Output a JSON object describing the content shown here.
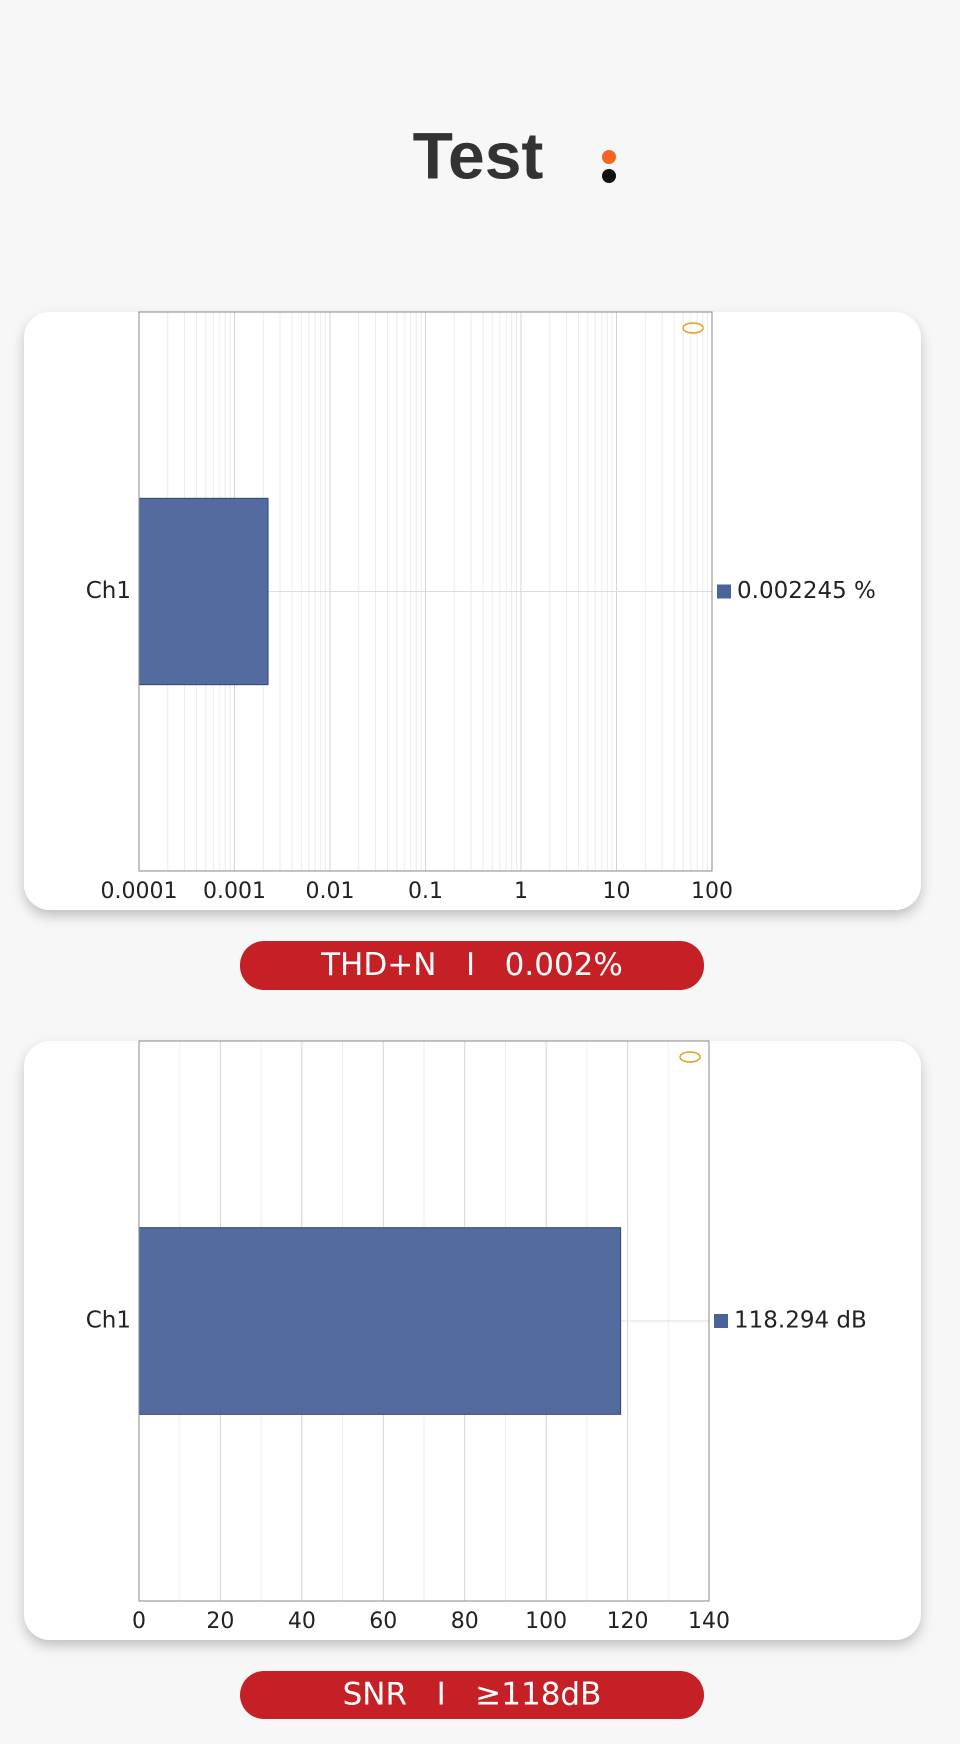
{
  "header": {
    "title": "Test"
  },
  "chart_data": [
    {
      "type": "bar",
      "orientation": "horizontal",
      "xscale": "log",
      "categories": [
        "Ch1"
      ],
      "values": [
        0.002245
      ],
      "value_labels": [
        "0.002245 %"
      ],
      "color": "#4a6399",
      "xlim": [
        0.0001,
        100
      ],
      "xticks": [
        0.0001,
        0.001,
        0.01,
        0.1,
        1,
        10,
        100
      ],
      "grid": true,
      "minor_grid": true,
      "annotation": "THD+N   I   0.002%"
    },
    {
      "type": "bar",
      "orientation": "horizontal",
      "xscale": "linear",
      "categories": [
        "Ch1"
      ],
      "values": [
        118.294
      ],
      "value_labels": [
        "118.294 dB"
      ],
      "color": "#4a6399",
      "xlim": [
        0,
        140
      ],
      "xticks": [
        0,
        20,
        40,
        60,
        80,
        100,
        120,
        140
      ],
      "grid": true,
      "minor_grid": true,
      "annotation": "SNR   I   ≥118dB"
    }
  ]
}
